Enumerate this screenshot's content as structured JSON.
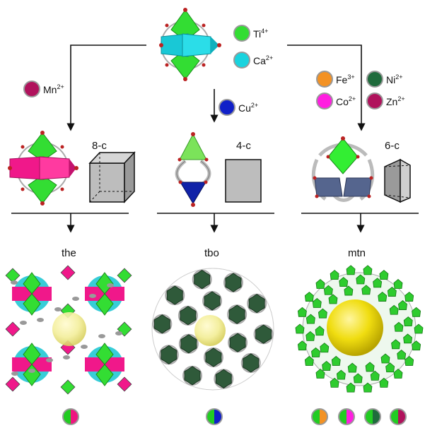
{
  "center_ions": [
    {
      "id": "ti",
      "symbol": "Ti",
      "charge": "4+",
      "color": "#33dd33"
    },
    {
      "id": "ca",
      "symbol": "Ca",
      "charge": "2+",
      "color": "#19d3de"
    }
  ],
  "left_branch": {
    "ions": [
      {
        "id": "mn",
        "symbol": "Mn",
        "charge": "2+",
        "color": "#b0125c"
      }
    ],
    "connectivity": "8-c",
    "net": "the",
    "pie_colors": [
      [
        "#22cc22",
        "#ee1680"
      ]
    ]
  },
  "middle_branch": {
    "ions": [
      {
        "id": "cu",
        "symbol": "Cu",
        "charge": "2+",
        "color": "#1020c8"
      }
    ],
    "connectivity": "4-c",
    "net": "tbo",
    "pie_colors": [
      [
        "#22cc22",
        "#1020c8"
      ]
    ]
  },
  "right_branch": {
    "ions": [
      {
        "id": "fe",
        "symbol": "Fe",
        "charge": "3+",
        "color": "#f39224"
      },
      {
        "id": "ni",
        "symbol": "Ni",
        "charge": "2+",
        "color": "#1f6b3c"
      },
      {
        "id": "co",
        "symbol": "Co",
        "charge": "2+",
        "color": "#ff1ee0"
      },
      {
        "id": "zn",
        "symbol": "Zn",
        "charge": "2+",
        "color": "#b0125c"
      }
    ],
    "connectivity": "6-c",
    "net": "mtn",
    "pie_colors": [
      [
        "#22cc22",
        "#f39224"
      ],
      [
        "#22cc22",
        "#ff1ee0"
      ],
      [
        "#22cc22",
        "#1f6b3c"
      ],
      [
        "#22cc22",
        "#b0125c"
      ]
    ]
  }
}
